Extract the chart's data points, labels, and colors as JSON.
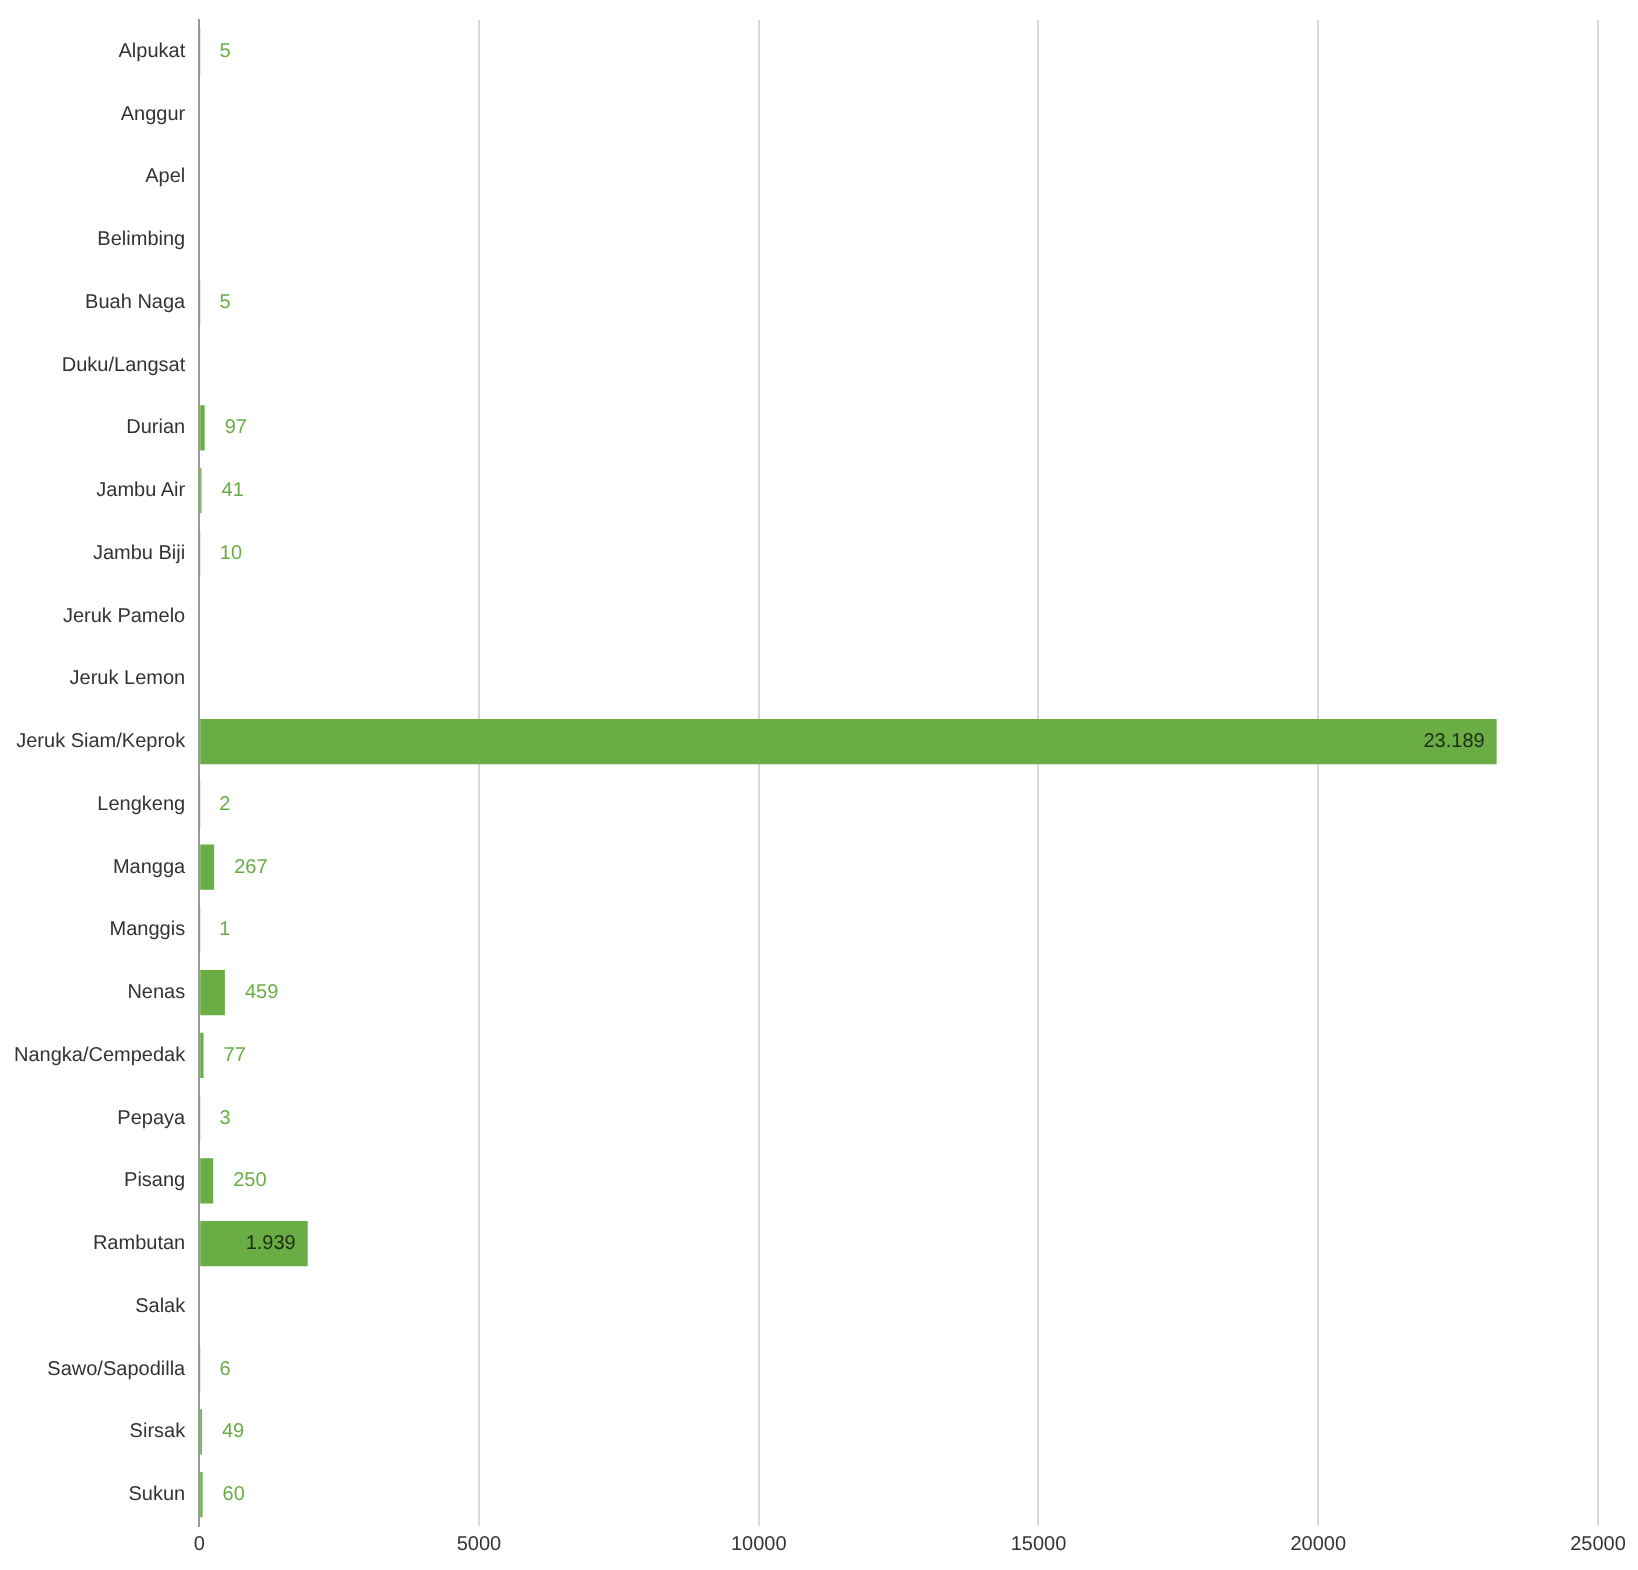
{
  "chart_data": {
    "type": "bar",
    "orientation": "horizontal",
    "categories": [
      "Alpukat",
      "Anggur",
      "Apel",
      "Belimbing",
      "Buah Naga",
      "Duku/Langsat",
      "Durian",
      "Jambu Air",
      "Jambu Biji",
      "Jeruk Pamelo",
      "Jeruk Lemon",
      "Jeruk Siam/Keprok",
      "Lengkeng",
      "Mangga",
      "Manggis",
      "Nenas",
      "Nangka/Cempedak",
      "Pepaya",
      "Pisang",
      "Rambutan",
      "Salak",
      "Sawo/Sapodilla",
      "Sirsak",
      "Sukun"
    ],
    "values": [
      5,
      null,
      null,
      null,
      5,
      null,
      97,
      41,
      10,
      null,
      null,
      23189,
      2,
      267,
      1,
      459,
      77,
      3,
      250,
      1939,
      null,
      6,
      49,
      60
    ],
    "value_labels": [
      "5",
      null,
      null,
      null,
      "5",
      null,
      "97",
      "41",
      "10",
      null,
      null,
      "23.189",
      "2",
      "267",
      "1",
      "459",
      "77",
      "3",
      "250",
      "1.939",
      null,
      "6",
      "49",
      "60"
    ],
    "color": "#6aad45",
    "xlim": [
      0,
      25000
    ],
    "xticks": [
      0,
      5000,
      10000,
      15000,
      20000,
      25000
    ],
    "grid": "x",
    "legend": false
  }
}
